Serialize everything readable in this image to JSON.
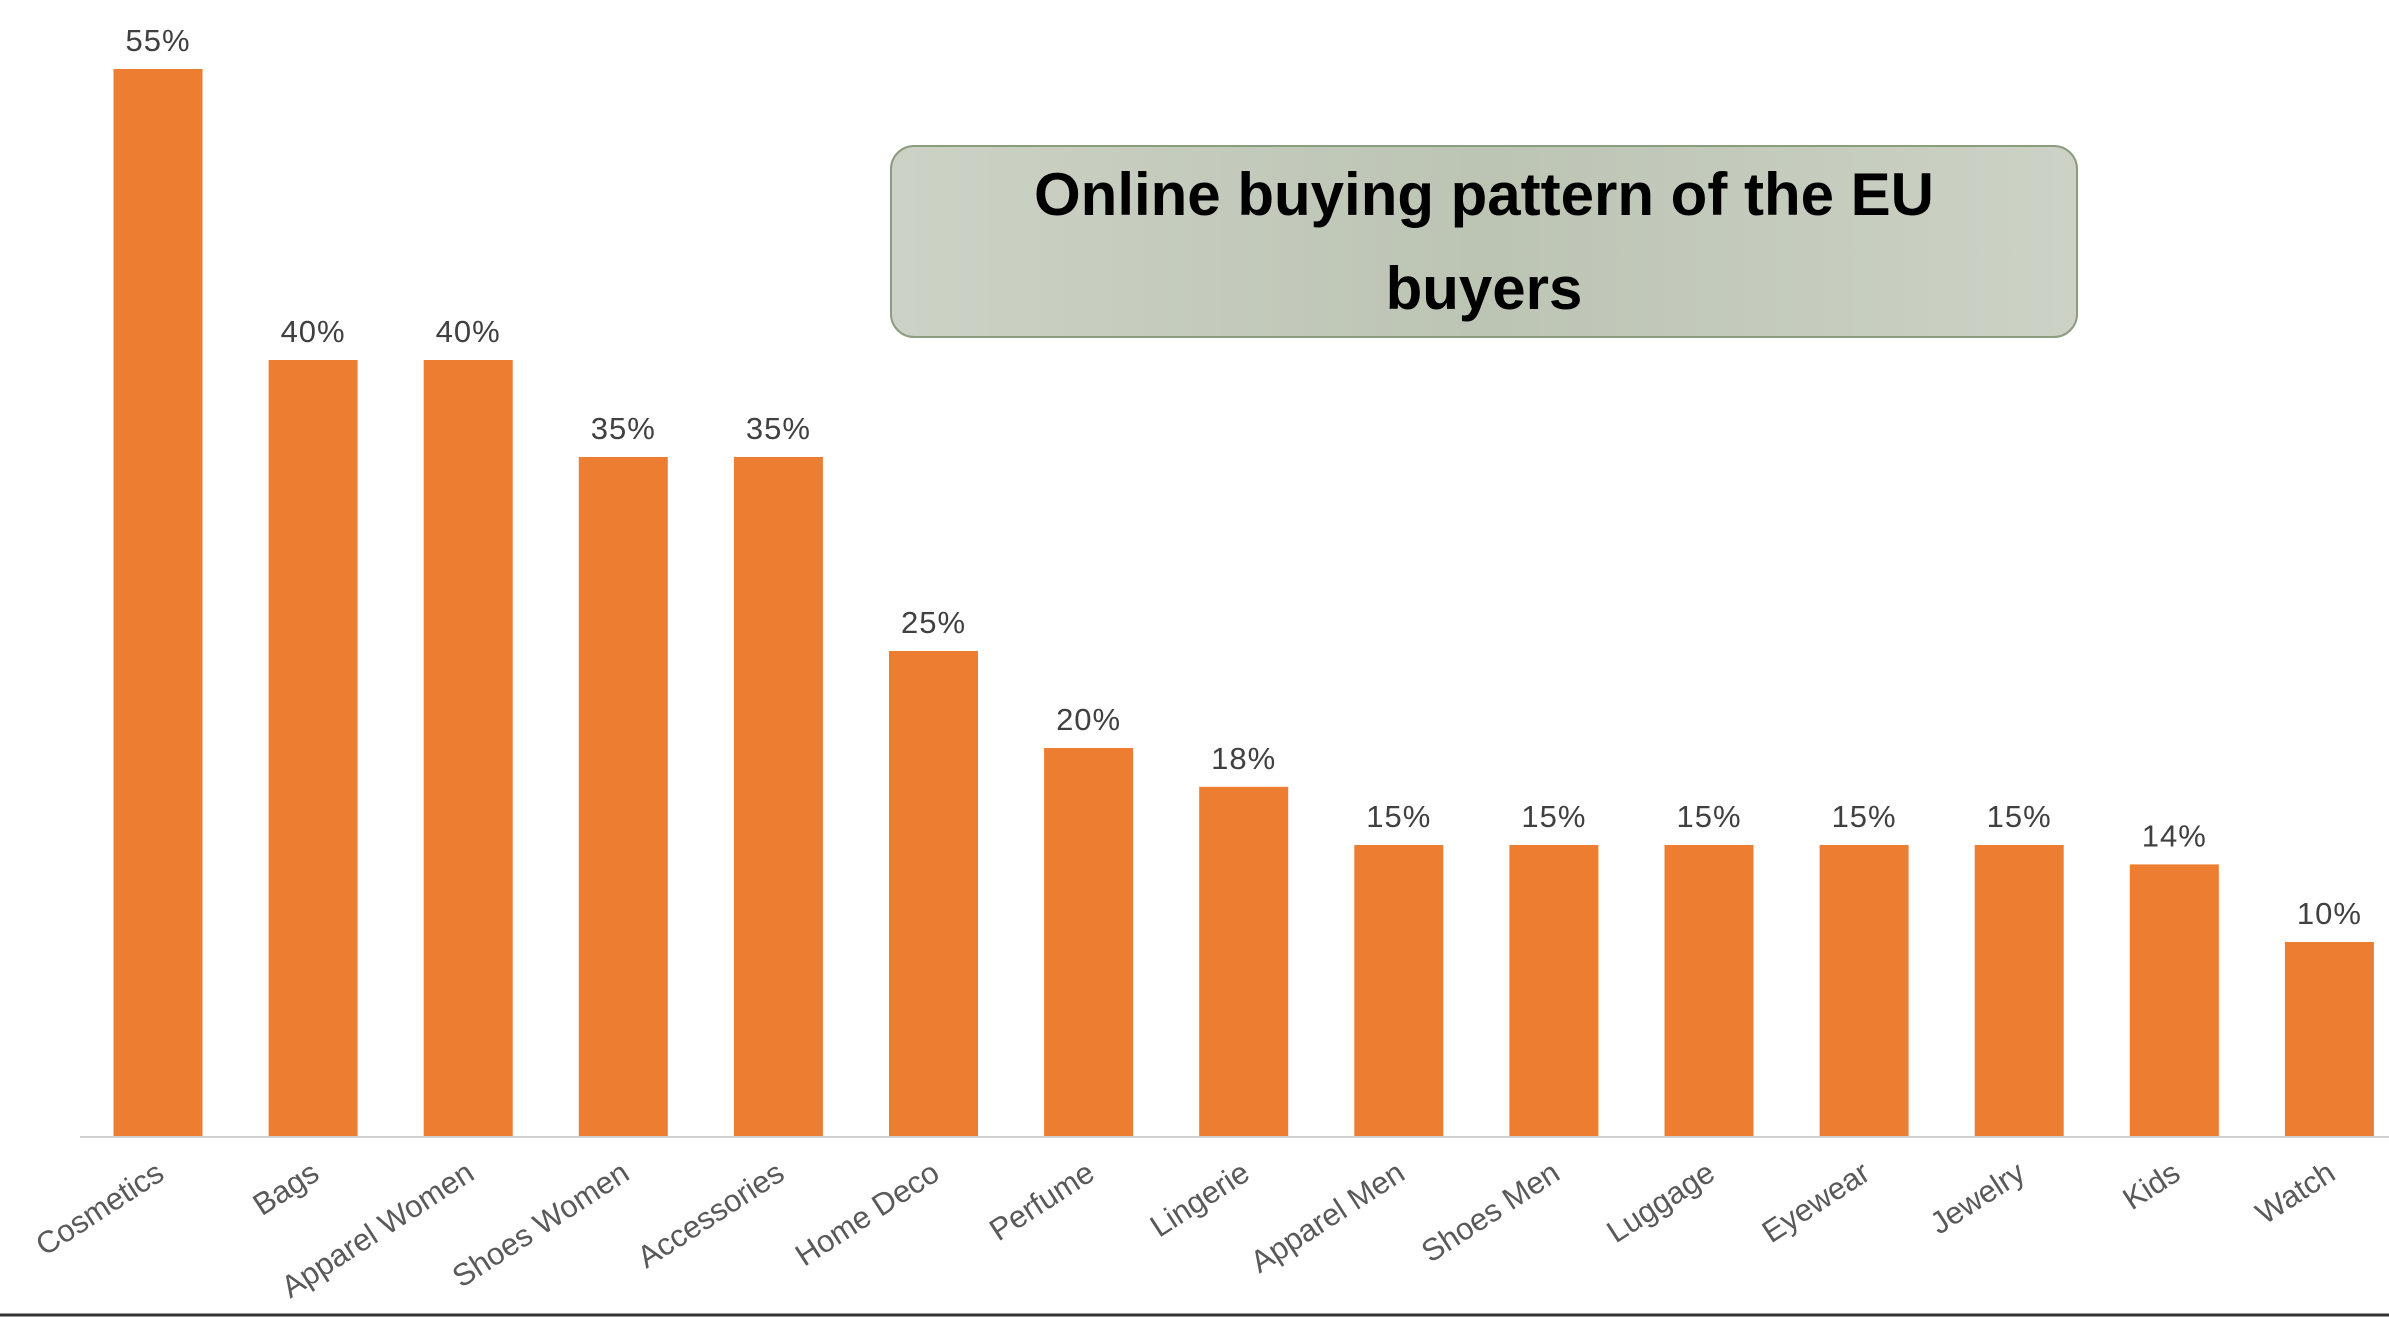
{
  "chart_data": {
    "type": "bar",
    "title": "Online buying pattern of the EU buyers",
    "categories": [
      "Cosmetics",
      "Bags",
      "Apparel Women",
      "Shoes Women",
      "Accessories",
      "Home Deco",
      "Perfume",
      "Lingerie",
      "Apparel Men",
      "Shoes Men",
      "Luggage",
      "Eyewear",
      "Jewelry",
      "Kids",
      "Watch"
    ],
    "values": [
      55,
      40,
      40,
      35,
      35,
      25,
      20,
      18,
      15,
      15,
      15,
      15,
      15,
      14,
      10
    ],
    "value_labels": [
      "55%",
      "40%",
      "40%",
      "35%",
      "35%",
      "25%",
      "20%",
      "18%",
      "15%",
      "15%",
      "15%",
      "15%",
      "15%",
      "14%",
      "10%"
    ],
    "color": "#ed7d31",
    "ylim": [
      0,
      55
    ]
  }
}
